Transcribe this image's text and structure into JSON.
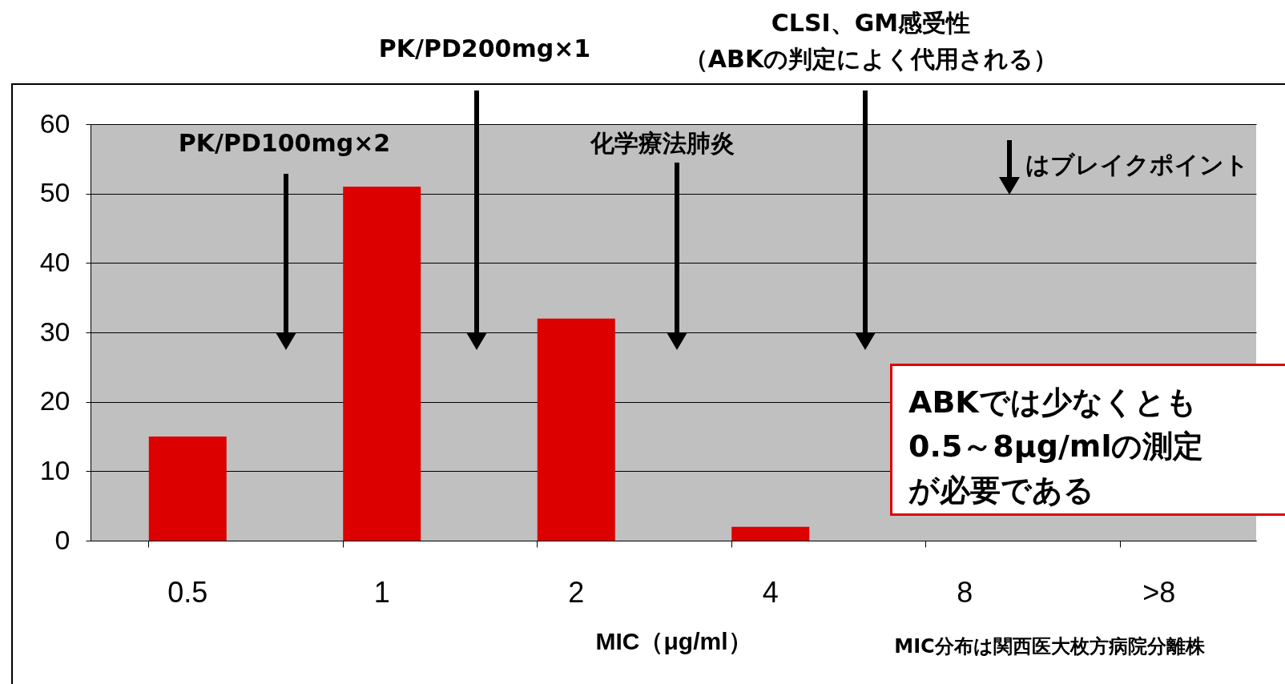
{
  "chart_data": {
    "type": "bar",
    "categories": [
      "0.5",
      "1",
      "2",
      "4",
      "8",
      ">8"
    ],
    "values": [
      15,
      51,
      32,
      2,
      0,
      0
    ],
    "color": "#dd0000",
    "ylim": [
      0,
      60
    ],
    "yticks": [
      0,
      10,
      20,
      30,
      40,
      50,
      60
    ],
    "grid": "y",
    "xlabel": "MIC（μg/ml）",
    "annotations": [
      "PK/PD100mg×2",
      "PK/PD200mg×1",
      "化学療法肺炎",
      "CLSI、GM感受性",
      "（ABKの判定によく代用される）",
      "はブレイクポイント",
      "ABKでは少なくとも",
      "0.5～8μg/mlの測定",
      "が必要である",
      "MIC分布は関西医大枚方病院分離株"
    ]
  }
}
